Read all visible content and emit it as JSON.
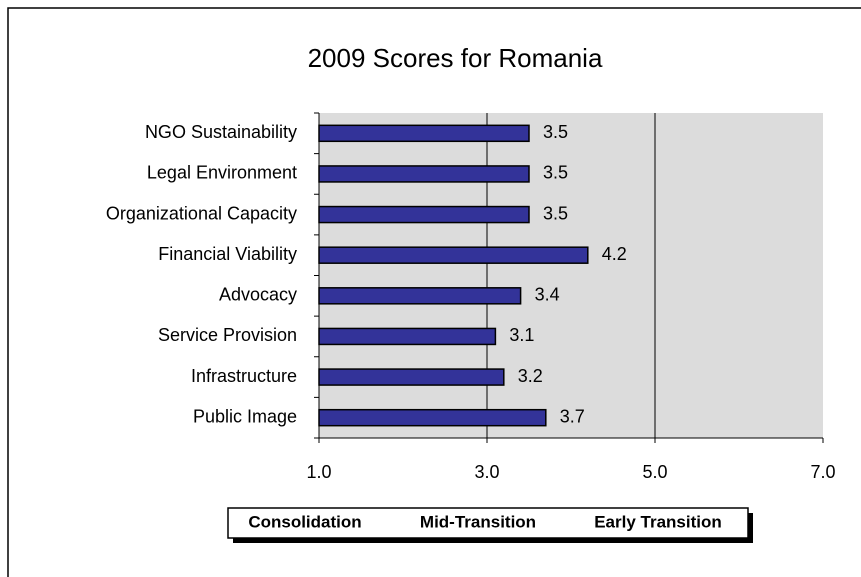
{
  "chart_data": {
    "type": "barh",
    "title": "2009 Scores for Romania",
    "categories": [
      "NGO Sustainability",
      "Legal Environment",
      "Organizational Capacity",
      "Financial Viability",
      "Advocacy",
      "Service Provision",
      "Infrastructure",
      "Public Image"
    ],
    "values": [
      3.5,
      3.5,
      3.5,
      4.2,
      3.4,
      3.1,
      3.2,
      3.7
    ],
    "color": "#333399",
    "xlim": [
      1,
      7
    ],
    "xticks": [
      {
        "value": 1,
        "label": "1.0"
      },
      {
        "value": 3,
        "label": "3.0"
      },
      {
        "value": 5,
        "label": "5.0"
      },
      {
        "value": 7,
        "label": "7.0"
      }
    ],
    "grid": true,
    "band_labels": [
      "Consolidation",
      "Mid-Transition",
      "Early Transition"
    ]
  }
}
